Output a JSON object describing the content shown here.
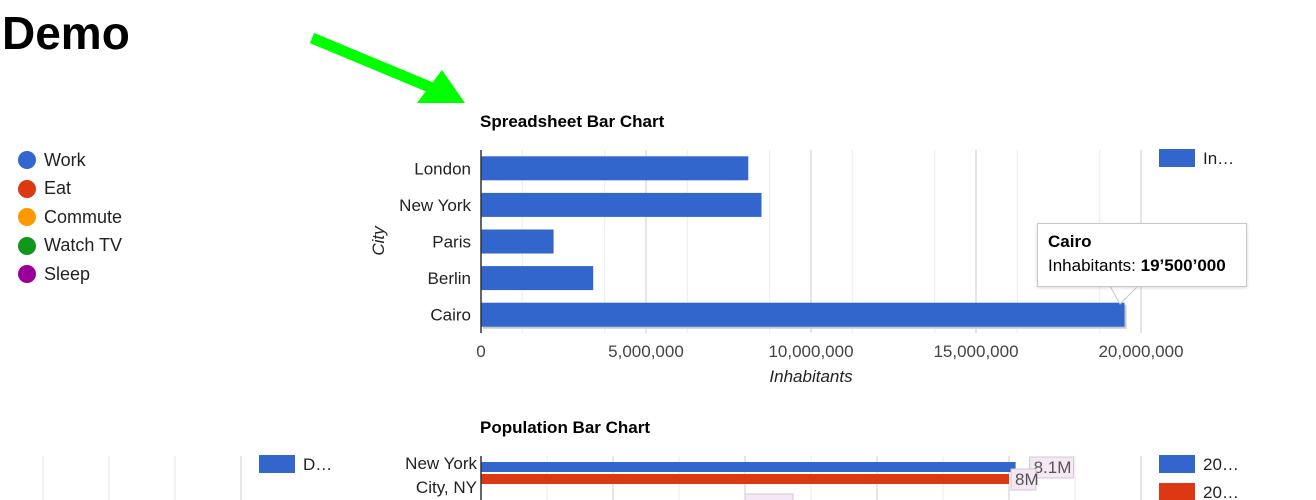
{
  "page": {
    "title": "Demo"
  },
  "pie_legend": {
    "items": [
      {
        "label": "Work",
        "color": "#3366cc"
      },
      {
        "label": "Eat",
        "color": "#dc3912"
      },
      {
        "label": "Commute",
        "color": "#ff9900"
      },
      {
        "label": "Watch TV",
        "color": "#109618"
      },
      {
        "label": "Sleep",
        "color": "#990099"
      }
    ]
  },
  "arrow": {
    "color": "#00ff00"
  },
  "tooltip": {
    "title": "Cairo",
    "label": "Inhabitants: ",
    "value": "19’500’000"
  },
  "chart_data": [
    {
      "type": "bar",
      "title": "Spreadsheet Bar Chart",
      "categories": [
        "London",
        "New York",
        "Paris",
        "Berlin",
        "Cairo"
      ],
      "series": [
        {
          "name": "In…",
          "color": "#3366cc",
          "values": [
            8100000,
            8500000,
            2200000,
            3400000,
            19500000
          ]
        }
      ],
      "xlabel": "Inhabitants",
      "ylabel": "City",
      "xlim": [
        0,
        20000000
      ],
      "xticks": [
        {
          "value": 0,
          "label": "0"
        },
        {
          "value": 5000000,
          "label": "5,000,000"
        },
        {
          "value": 10000000,
          "label": "10,000,000"
        },
        {
          "value": 15000000,
          "label": "15,000,000"
        },
        {
          "value": 20000000,
          "label": "20,000,000"
        }
      ],
      "grid": true,
      "legend": "top-right",
      "orientation": "horizontal"
    },
    {
      "type": "bar",
      "title": "Population Bar Chart",
      "categories": [
        "New York City, NY"
      ],
      "category_lines": [
        [
          "New York",
          "City, NY"
        ]
      ],
      "series": [
        {
          "name": "20…",
          "color": "#3366cc",
          "values": [
            8.1
          ],
          "labels": [
            "8.1M"
          ]
        },
        {
          "name": "20…",
          "color": "#dc3912",
          "values": [
            8.0
          ],
          "labels": [
            "8M"
          ]
        }
      ],
      "side_legend": {
        "name": "D…",
        "color": "#3366cc"
      },
      "xlim": [
        0,
        10
      ],
      "grid": true,
      "legend": "top-right",
      "orientation": "horizontal"
    }
  ]
}
